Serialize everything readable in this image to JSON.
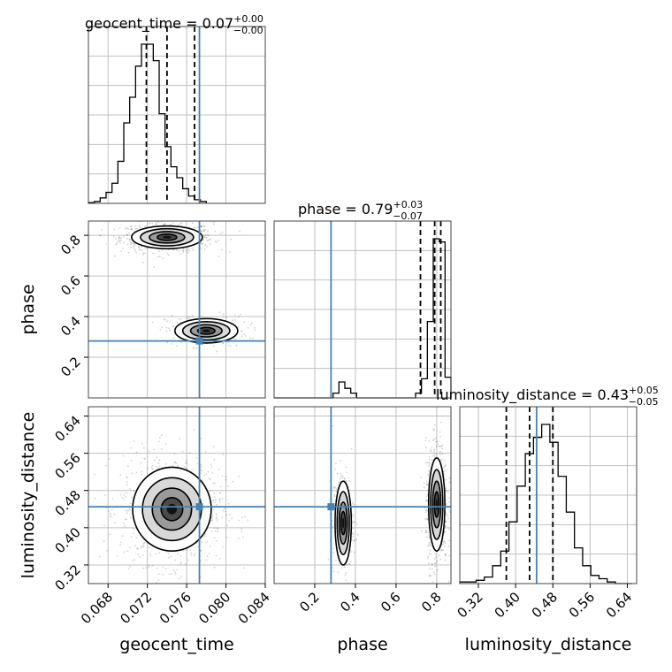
{
  "chart_data": {
    "type": "corner",
    "parameters": [
      "geocent_time",
      "phase",
      "luminosity_distance"
    ],
    "truths": {
      "geocent_time": 0.0773,
      "phase": 0.28,
      "luminosity_distance": 0.445
    },
    "colors": {
      "truth": "#4682b4",
      "hist": "#000000",
      "grid": "#c0c0c0"
    },
    "grid": true,
    "titles": [
      {
        "param": "geocent_time",
        "label": "geocent_time = 0.07",
        "sup": "+0.00",
        "sub": "−0.00"
      },
      {
        "param": "phase",
        "label": "phase = 0.79",
        "sup": "+0.03",
        "sub": "−0.07"
      },
      {
        "param": "luminosity_distance",
        "label": "luminosity_distance = 0.43",
        "sup": "+0.05",
        "sub": "−0.05"
      }
    ],
    "ticks": {
      "geocent_time": [
        "0.068",
        "0.072",
        "0.076",
        "0.080",
        "0.084"
      ],
      "phase": [
        "0.2",
        "0.4",
        "0.6",
        "0.8"
      ],
      "luminosity_distance": [
        "0.32",
        "0.40",
        "0.48",
        "0.56",
        "0.64"
      ]
    },
    "tick_values": {
      "geocent_time": [
        0.068,
        0.072,
        0.076,
        0.08,
        0.084
      ],
      "phase": [
        0.2,
        0.4,
        0.6,
        0.8
      ],
      "luminosity_distance": [
        0.32,
        0.4,
        0.48,
        0.56,
        0.64
      ]
    },
    "ranges": {
      "geocent_time": [
        0.066,
        0.084
      ],
      "phase": [
        0.0,
        0.87
      ],
      "luminosity_distance": [
        0.28,
        0.66
      ]
    },
    "quantiles": {
      "geocent_time": [
        0.0719,
        0.074,
        0.0768
      ],
      "phase": [
        0.72,
        0.79,
        0.82
      ],
      "luminosity_distance": [
        0.38,
        0.43,
        0.48
      ]
    },
    "histograms": {
      "geocent_time": {
        "edges_start": 0.066,
        "bin_width": 0.0006,
        "counts": [
          0.4,
          1,
          3,
          6,
          11,
          23,
          44,
          58,
          75,
          87,
          87,
          78,
          49,
          31,
          20,
          14,
          8,
          4,
          2,
          1
        ]
      },
      "phase": {
        "edges_start": 0.0,
        "bin_width": 0.029,
        "counts": [
          0,
          0,
          0,
          0,
          0,
          0,
          0,
          0,
          0,
          0,
          3,
          10,
          6,
          3,
          0,
          0,
          0,
          0,
          0,
          0,
          0,
          0,
          0,
          0,
          3,
          12,
          48,
          100,
          98,
          13
        ]
      },
      "luminosity_distance": {
        "edges_start": 0.28,
        "bin_width": 0.0176,
        "counts": [
          1,
          1,
          2,
          4,
          11,
          20,
          38,
          60,
          80,
          90,
          98,
          87,
          66,
          44,
          22,
          11,
          5,
          3,
          1,
          0,
          0
        ]
      }
    },
    "clusters_2d": [
      {
        "x": "geocent_time",
        "y": "phase",
        "cx": 0.074,
        "cy": 0.79,
        "sx": 0.0018,
        "sy": 0.028,
        "n": 700
      },
      {
        "x": "geocent_time",
        "y": "phase",
        "cx": 0.078,
        "cy": 0.33,
        "sx": 0.0016,
        "sy": 0.03,
        "n": 250
      },
      {
        "x": "geocent_time",
        "y": "luminosity_distance",
        "cx": 0.0745,
        "cy": 0.44,
        "sx": 0.002,
        "sy": 0.045,
        "n": 950
      },
      {
        "x": "phase",
        "y": "luminosity_distance",
        "cx": 0.34,
        "cy": 0.41,
        "sx": 0.02,
        "sy": 0.045,
        "n": 260
      },
      {
        "x": "phase",
        "y": "luminosity_distance",
        "cx": 0.8,
        "cy": 0.45,
        "sx": 0.02,
        "sy": 0.05,
        "n": 700
      }
    ]
  }
}
